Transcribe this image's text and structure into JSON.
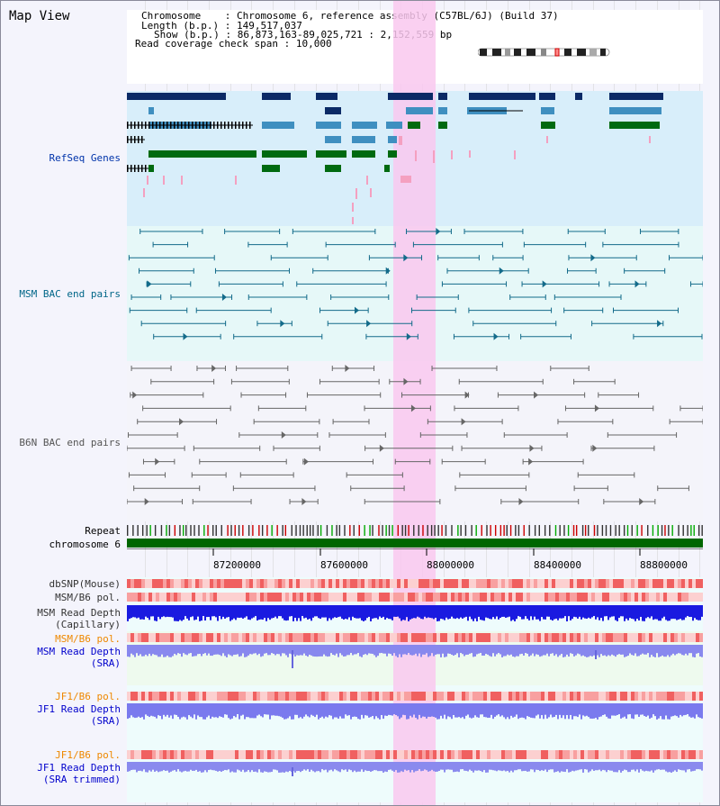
{
  "window": {
    "title": "Map View"
  },
  "header": {
    "lines": [
      {
        "label": "Chromosome",
        "sep": ":",
        "value": "Chromosome 6, reference assembly (C57BL/6J) (Build 37)"
      },
      {
        "label": "Length (b.p.)",
        "sep": ":",
        "value": "149,517,037"
      },
      {
        "label": "Show (b.p.)",
        "sep": ":",
        "value": "86,873,163-89,025,721 : 2,152,559 bp"
      },
      {
        "label": "Read coverage check span",
        "sep": ":",
        "value": "10,000"
      }
    ]
  },
  "tracks": {
    "refseq": {
      "label": "RefSeq Genes",
      "color": "#0033aa"
    },
    "msm_bac": {
      "label": "MSM BAC end pairs",
      "color": "#006688"
    },
    "b6n_bac": {
      "label": "B6N BAC end pairs",
      "color": "#555555"
    },
    "repeat": {
      "label": "Repeat"
    },
    "chromosome": {
      "label": "chromosome 6",
      "color": "#006600"
    },
    "dbsnp": {
      "label": "dbSNP(Mouse)"
    },
    "msm_b6_pol_1": {
      "label": "MSM/B6 pol."
    },
    "msm_depth_cap": {
      "label_1": "MSM Read Depth",
      "label_2": "(Capillary)"
    },
    "msm_b6_pol_2": {
      "label": "MSM/B6 pol.",
      "color": "#ee8800"
    },
    "msm_depth_sra": {
      "label_1": "MSM Read Depth",
      "label_2": "(SRA)",
      "color": "#0000cc"
    },
    "jf1_b6_pol_1": {
      "label": "JF1/B6 pol.",
      "color": "#ee8800"
    },
    "jf1_depth_sra": {
      "label_1": "JF1 Read Depth",
      "label_2": "(SRA)",
      "color": "#0000cc"
    },
    "jf1_b6_pol_2": {
      "label": "JF1/B6 pol.",
      "color": "#ee8800"
    },
    "jf1_depth_trim": {
      "label_1": "JF1 Read Depth",
      "label_2": "(SRA trimmed)",
      "color": "#0000cc"
    }
  },
  "axis": {
    "ticks": [
      "87200000",
      "87600000",
      "88000000",
      "88400000",
      "88800000"
    ]
  },
  "colors": {
    "highlight": "#f9c8ee",
    "refseq_bg": "#d8eefa",
    "msm_bg": "#e6f8f8",
    "b6n_bg": "#f4f4fa"
  }
}
